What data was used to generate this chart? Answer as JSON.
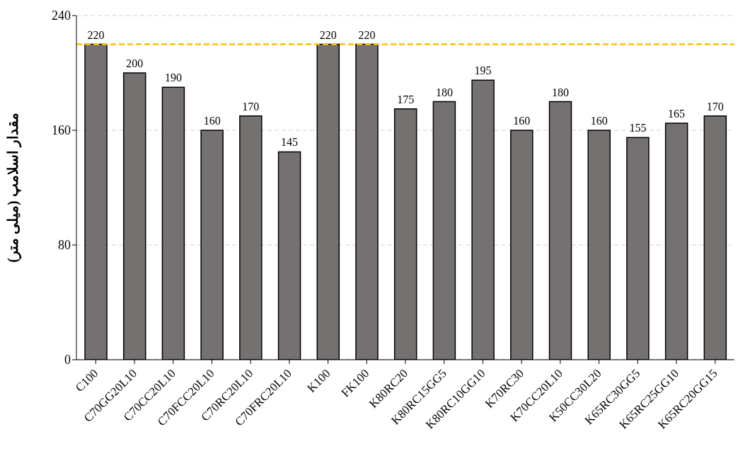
{
  "chart_data": {
    "type": "bar",
    "ylabel": "مقدار اسلامپ (میلی متر)",
    "categories": [
      "C100",
      "C70GG20L10",
      "C70CC20L10",
      "C70FCC20L10",
      "C70RC20L10",
      "C70FRC20L10",
      "K100",
      "FK100",
      "K80RC20",
      "K80RC15GG5",
      "K80RC10GG10",
      "K70RC30",
      "K70CC20L10",
      "K50CC30L20",
      "K65RC30GG5",
      "K65RC25GG10",
      "K65RC20GG15"
    ],
    "values": [
      220,
      200,
      190,
      160,
      170,
      145,
      220,
      220,
      175,
      180,
      195,
      160,
      180,
      160,
      155,
      165,
      170
    ],
    "color": "#767171",
    "ylim": [
      0,
      240
    ],
    "yticks": [
      0,
      80,
      160,
      240
    ],
    "grid": "y",
    "data_labels": true,
    "ref_lines": [
      {
        "axis": "y",
        "value": 220,
        "color": "#ffc000",
        "line_style": "dashed"
      }
    ]
  }
}
